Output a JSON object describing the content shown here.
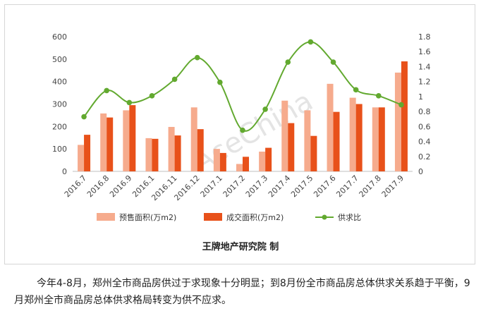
{
  "chart_data": {
    "type": "bar",
    "categories": [
      "2016.7",
      "2016.8",
      "2016.9",
      "2016.1",
      "2016.11",
      "2016.12",
      "2017.1",
      "2017.2",
      "2017.3",
      "2017.4",
      "2017.5",
      "2017.6",
      "2017.7",
      "2017.8",
      "2017.9"
    ],
    "series": [
      {
        "name": "预售面积(万m2)",
        "kind": "bar",
        "axis": "left",
        "color": "#f6ab8d",
        "values": [
          118,
          258,
          272,
          148,
          198,
          285,
          100,
          33,
          88,
          315,
          272,
          390,
          328,
          285,
          440
        ]
      },
      {
        "name": "成交面积(万m2)",
        "kind": "bar",
        "axis": "left",
        "color": "#e8511a",
        "values": [
          163,
          240,
          295,
          145,
          160,
          188,
          82,
          65,
          105,
          215,
          158,
          265,
          300,
          285,
          490
        ]
      },
      {
        "name": "供求比",
        "kind": "line",
        "axis": "right",
        "color": "#62a92f",
        "values": [
          0.73,
          1.08,
          0.92,
          1.01,
          1.23,
          1.52,
          1.19,
          0.55,
          0.83,
          1.46,
          1.73,
          1.46,
          1.09,
          1.01,
          0.89
        ]
      }
    ],
    "ylim": [
      0,
      600
    ],
    "y_ticks": [
      0,
      100,
      200,
      300,
      400,
      500,
      600
    ],
    "y2lim": [
      0,
      1.8
    ],
    "y2_ticks": [
      "0",
      "0.2",
      "0.4",
      "0.6",
      "0.8",
      "1",
      "1.2",
      "1.4",
      "1.6",
      "1.8"
    ],
    "legend_placement": "bottom",
    "grid": false
  },
  "credit": "王牌地产研究院 制",
  "watermark": "AceChina",
  "caption": "今年4-8月，郑州全市商品房供过于求现象十分明显；到8月份全市商品房总体供求关系趋于平衡，9月郑州全市商品房总体供求格局转变为供不应求。"
}
